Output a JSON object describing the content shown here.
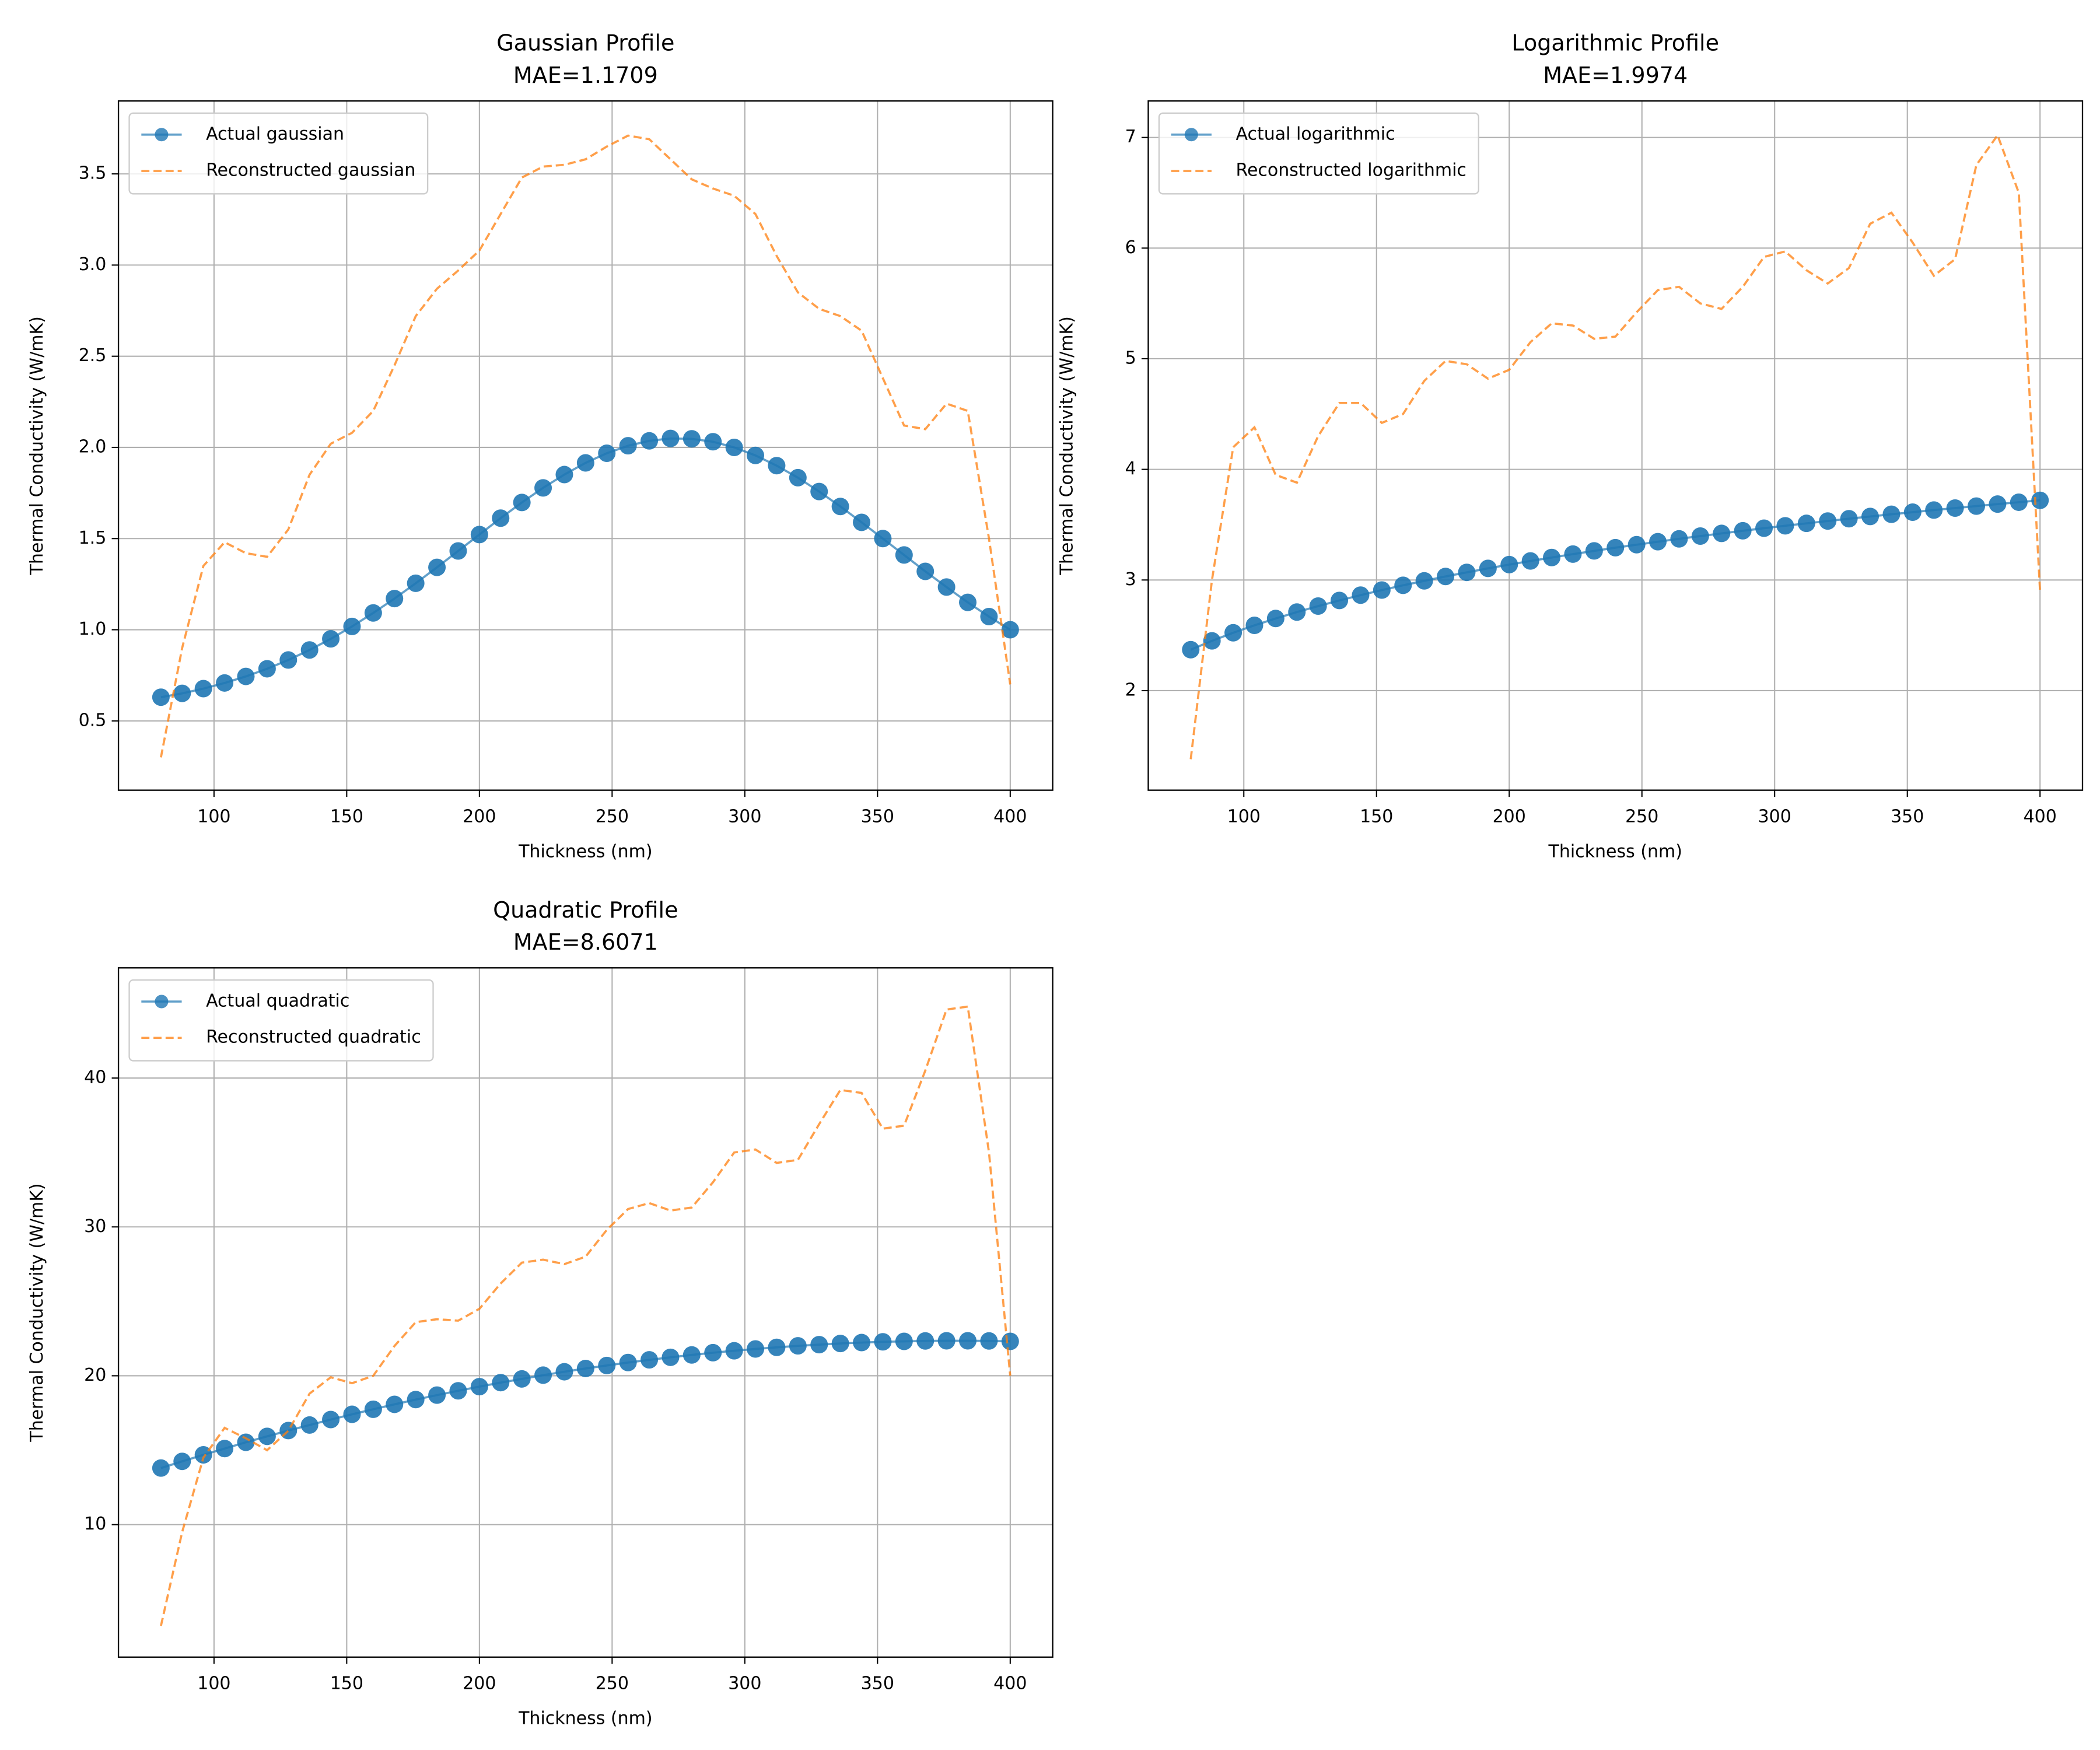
{
  "chart_data": [
    {
      "type": "line",
      "title": "Gaussian Profile",
      "subtitle": "MAE=1.1709",
      "xlabel": "Thickness (nm)",
      "ylabel": "Thermal Conductivity (W/mK)",
      "x": [
        80,
        88,
        96,
        104,
        112,
        120,
        128,
        136,
        144,
        152,
        160,
        168,
        176,
        184,
        192,
        200,
        208,
        216,
        224,
        232,
        240,
        248,
        256,
        264,
        272,
        280,
        288,
        296,
        304,
        312,
        320,
        328,
        336,
        344,
        352,
        360,
        368,
        376,
        384,
        392,
        400
      ],
      "series": [
        {
          "name": "Actual gaussian",
          "color": "#1f77b4",
          "marker": "o",
          "linestyle": "solid",
          "values": [
            0.63,
            0.651,
            0.677,
            0.708,
            0.744,
            0.786,
            0.834,
            0.889,
            0.95,
            1.018,
            1.092,
            1.171,
            1.255,
            1.342,
            1.432,
            1.522,
            1.612,
            1.698,
            1.778,
            1.851,
            1.915,
            1.968,
            2.009,
            2.036,
            2.049,
            2.047,
            2.031,
            2.0,
            1.956,
            1.9,
            1.834,
            1.758,
            1.676,
            1.589,
            1.5,
            1.41,
            1.32,
            1.234,
            1.15,
            1.072,
            1.0
          ]
        },
        {
          "name": "Reconstructed gaussian",
          "color": "#ff7f0e",
          "linestyle": "dashed",
          "values": [
            0.3,
            0.9,
            1.35,
            1.48,
            1.42,
            1.4,
            1.55,
            1.85,
            2.02,
            2.08,
            2.2,
            2.45,
            2.72,
            2.87,
            2.97,
            3.08,
            3.28,
            3.48,
            3.54,
            3.55,
            3.58,
            3.65,
            3.71,
            3.69,
            3.58,
            3.47,
            3.42,
            3.38,
            3.28,
            3.05,
            2.85,
            2.76,
            2.72,
            2.64,
            2.38,
            2.12,
            2.1,
            2.24,
            2.2,
            1.5,
            0.7
          ]
        }
      ],
      "xlim": [
        64,
        416
      ],
      "xticks": [
        100,
        150,
        200,
        250,
        300,
        350,
        400
      ],
      "ylim": [
        0.12,
        3.9
      ],
      "yticks": [
        0.5,
        {
          "value": 1.0,
          "label": "1.0"
        },
        1.5,
        {
          "value": 2.0,
          "label": "2.0"
        },
        2.5,
        {
          "value": 3.0,
          "label": "3.0"
        },
        3.5
      ],
      "grid": true,
      "legend": "upper left"
    },
    {
      "type": "line",
      "title": "Logarithmic Profile",
      "subtitle": "MAE=1.9974",
      "xlabel": "Thickness (nm)",
      "ylabel": "Thermal Conductivity (W/mK)",
      "x": [
        80,
        88,
        96,
        104,
        112,
        120,
        128,
        136,
        144,
        152,
        160,
        168,
        176,
        184,
        192,
        200,
        208,
        216,
        224,
        232,
        240,
        248,
        256,
        264,
        272,
        280,
        288,
        296,
        304,
        312,
        320,
        328,
        336,
        344,
        352,
        360,
        368,
        376,
        384,
        392,
        400
      ],
      "series": [
        {
          "name": "Actual logarithmic",
          "color": "#1f77b4",
          "marker": "o",
          "linestyle": "solid",
          "values": [
            2.37,
            2.45,
            2.523,
            2.59,
            2.652,
            2.71,
            2.764,
            2.815,
            2.863,
            2.909,
            2.952,
            2.992,
            3.032,
            3.069,
            3.105,
            3.139,
            3.172,
            3.203,
            3.234,
            3.263,
            3.292,
            3.319,
            3.346,
            3.372,
            3.397,
            3.421,
            3.445,
            3.468,
            3.49,
            3.512,
            3.533,
            3.554,
            3.574,
            3.594,
            3.613,
            3.632,
            3.65,
            3.668,
            3.686,
            3.703,
            3.72
          ]
        },
        {
          "name": "Reconstructed logarithmic",
          "color": "#ff7f0e",
          "linestyle": "dashed",
          "values": [
            1.38,
            3.0,
            4.2,
            4.38,
            3.95,
            3.88,
            4.3,
            4.6,
            4.6,
            4.42,
            4.5,
            4.8,
            4.98,
            4.95,
            4.82,
            4.9,
            5.15,
            5.32,
            5.3,
            5.18,
            5.2,
            5.42,
            5.62,
            5.65,
            5.5,
            5.45,
            5.65,
            5.92,
            5.97,
            5.8,
            5.68,
            5.82,
            6.22,
            6.32,
            6.05,
            5.75,
            5.9,
            6.75,
            7.02,
            6.5,
            2.9
          ]
        }
      ],
      "xlim": [
        64,
        416
      ],
      "xticks": [
        100,
        150,
        200,
        250,
        300,
        350,
        400
      ],
      "ylim": [
        1.1,
        7.33
      ],
      "yticks": [
        2,
        3,
        4,
        5,
        6,
        7
      ],
      "grid": true,
      "legend": "upper left"
    },
    {
      "type": "line",
      "title": "Quadratic Profile",
      "subtitle": "MAE=8.6071",
      "xlabel": "Thickness (nm)",
      "ylabel": "Thermal Conductivity (W/mK)",
      "x": [
        80,
        88,
        96,
        104,
        112,
        120,
        128,
        136,
        144,
        152,
        160,
        168,
        176,
        184,
        192,
        200,
        208,
        216,
        224,
        232,
        240,
        248,
        256,
        264,
        272,
        280,
        288,
        296,
        304,
        312,
        320,
        328,
        336,
        344,
        352,
        360,
        368,
        376,
        384,
        392,
        400
      ],
      "series": [
        {
          "name": "Actual quadratic",
          "color": "#1f77b4",
          "marker": "o",
          "linestyle": "solid",
          "values": [
            13.8,
            14.25,
            14.69,
            15.11,
            15.53,
            15.93,
            16.32,
            16.69,
            17.06,
            17.41,
            17.75,
            18.08,
            18.4,
            18.7,
            18.99,
            19.27,
            19.54,
            19.79,
            20.04,
            20.27,
            20.49,
            20.69,
            20.89,
            21.07,
            21.24,
            21.4,
            21.55,
            21.68,
            21.8,
            21.91,
            22.01,
            22.09,
            22.17,
            22.23,
            22.28,
            22.31,
            22.34,
            22.35,
            22.35,
            22.34,
            22.31
          ]
        },
        {
          "name": "Reconstructed quadratic",
          "color": "#ff7f0e",
          "linestyle": "dashed",
          "values": [
            3.2,
            9.5,
            14.5,
            16.5,
            15.8,
            15.0,
            16.3,
            18.8,
            19.9,
            19.5,
            20.0,
            22.0,
            23.6,
            23.8,
            23.7,
            24.5,
            26.2,
            27.6,
            27.8,
            27.5,
            28.0,
            29.8,
            31.2,
            31.6,
            31.1,
            31.3,
            33.0,
            35.0,
            35.2,
            34.3,
            34.5,
            36.9,
            39.2,
            39.0,
            36.6,
            36.8,
            40.5,
            44.6,
            44.8,
            35.0,
            20.0
          ]
        }
      ],
      "xlim": [
        64,
        416
      ],
      "xticks": [
        100,
        150,
        200,
        250,
        300,
        350,
        400
      ],
      "ylim": [
        1.1,
        47.4
      ],
      "yticks": [
        10,
        20,
        30,
        40
      ],
      "grid": true,
      "legend": "upper left"
    }
  ]
}
